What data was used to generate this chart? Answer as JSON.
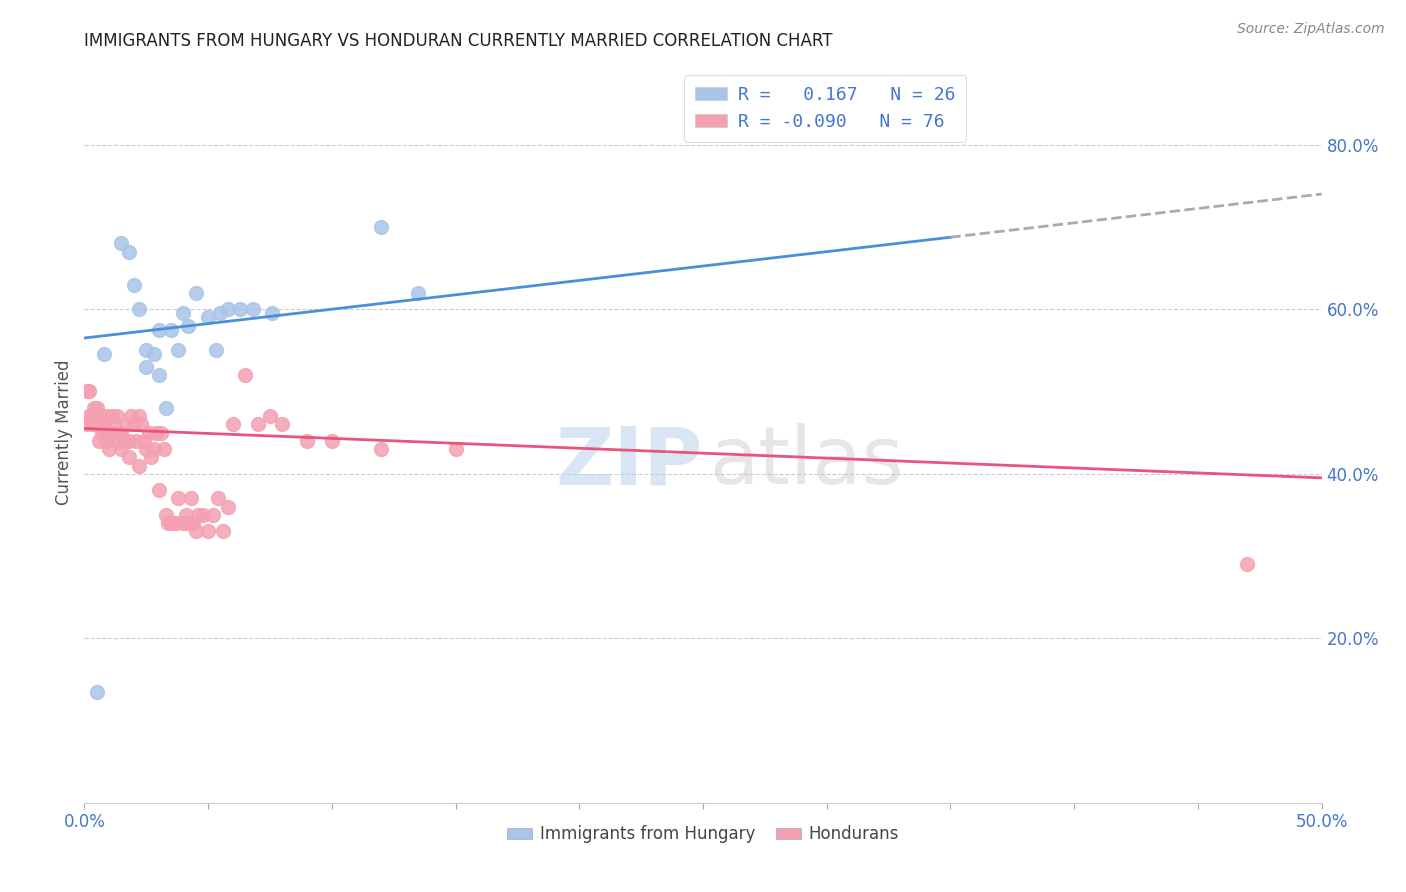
{
  "title": "IMMIGRANTS FROM HUNGARY VS HONDURAN CURRENTLY MARRIED CORRELATION CHART",
  "source": "Source: ZipAtlas.com",
  "ylabel": "Currently Married",
  "right_yticks": [
    "20.0%",
    "40.0%",
    "60.0%",
    "80.0%"
  ],
  "right_ytick_vals": [
    0.2,
    0.4,
    0.6,
    0.8
  ],
  "hungary_x": [
    0.0005,
    0.0008,
    0.0015,
    0.0018,
    0.002,
    0.0022,
    0.0025,
    0.0025,
    0.0028,
    0.003,
    0.003,
    0.0033,
    0.0035,
    0.0038,
    0.004,
    0.0042,
    0.0045,
    0.005,
    0.0053,
    0.0055,
    0.0058,
    0.0063,
    0.0068,
    0.0076,
    0.012,
    0.0135
  ],
  "hungary_y": [
    0.135,
    0.545,
    0.68,
    0.67,
    0.63,
    0.6,
    0.53,
    0.55,
    0.545,
    0.575,
    0.52,
    0.48,
    0.575,
    0.55,
    0.595,
    0.58,
    0.62,
    0.59,
    0.55,
    0.595,
    0.6,
    0.6,
    0.6,
    0.595,
    0.7,
    0.62
  ],
  "honduran_x": [
    0.0001,
    0.0001,
    0.0002,
    0.0002,
    0.0003,
    0.0003,
    0.0004,
    0.0004,
    0.0005,
    0.0005,
    0.0006,
    0.0006,
    0.0007,
    0.0007,
    0.0008,
    0.0008,
    0.0009,
    0.0009,
    0.001,
    0.001,
    0.0011,
    0.0011,
    0.0012,
    0.0013,
    0.0013,
    0.0014,
    0.0015,
    0.0015,
    0.0016,
    0.0017,
    0.0018,
    0.0018,
    0.0019,
    0.002,
    0.0021,
    0.0022,
    0.0022,
    0.0023,
    0.0024,
    0.0025,
    0.0026,
    0.0027,
    0.0028,
    0.0029,
    0.003,
    0.0031,
    0.0032,
    0.0033,
    0.0034,
    0.0035,
    0.0036,
    0.0037,
    0.0038,
    0.004,
    0.0041,
    0.0042,
    0.0043,
    0.0044,
    0.0045,
    0.0046,
    0.0048,
    0.005,
    0.0052,
    0.0054,
    0.0056,
    0.0058,
    0.006,
    0.0065,
    0.007,
    0.0075,
    0.008,
    0.009,
    0.01,
    0.012,
    0.015,
    0.047
  ],
  "honduran_y": [
    0.5,
    0.46,
    0.5,
    0.47,
    0.47,
    0.46,
    0.47,
    0.48,
    0.48,
    0.46,
    0.47,
    0.44,
    0.46,
    0.45,
    0.46,
    0.45,
    0.47,
    0.44,
    0.45,
    0.43,
    0.47,
    0.45,
    0.46,
    0.47,
    0.44,
    0.45,
    0.43,
    0.45,
    0.44,
    0.46,
    0.44,
    0.42,
    0.47,
    0.46,
    0.44,
    0.47,
    0.41,
    0.46,
    0.44,
    0.43,
    0.45,
    0.42,
    0.43,
    0.45,
    0.38,
    0.45,
    0.43,
    0.35,
    0.34,
    0.34,
    0.34,
    0.34,
    0.37,
    0.34,
    0.35,
    0.34,
    0.37,
    0.34,
    0.33,
    0.35,
    0.35,
    0.33,
    0.35,
    0.37,
    0.33,
    0.36,
    0.46,
    0.52,
    0.46,
    0.47,
    0.46,
    0.44,
    0.44,
    0.43,
    0.43,
    0.29
  ],
  "hungary_color": "#a8c4e8",
  "honduran_color": "#f4a0b0",
  "hungary_line_color": "#4a90d9",
  "honduran_line_color": "#e8547a",
  "trend_line_ext_color": "#aaaaaa",
  "xlim": [
    0.0,
    0.05
  ],
  "ylim": [
    0.0,
    0.9
  ],
  "hungary_trend_x0": 0.0,
  "hungary_trend_y0": 0.565,
  "hungary_trend_x1": 0.05,
  "hungary_trend_y1": 0.74,
  "honduras_trend_x0": 0.0,
  "honduras_trend_y0": 0.455,
  "honduras_trend_x1": 0.05,
  "honduras_trend_y1": 0.395,
  "trend_split_x": 0.035,
  "title_color": "#222222",
  "source_color": "#888888",
  "axis_color": "#4477cc",
  "grid_color": "#cccccc"
}
